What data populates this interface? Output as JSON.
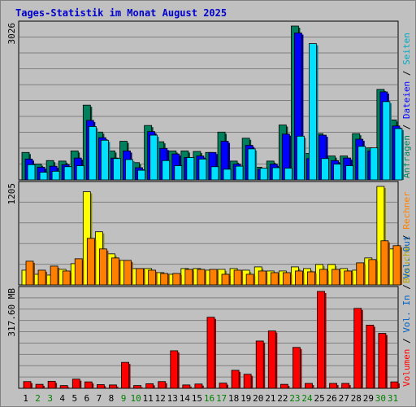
{
  "chart_data": [
    {
      "type": "bar",
      "title": "Tages-Statistik im Monat August 2025",
      "ymax_label": "3026",
      "ylim": [
        0,
        3026
      ],
      "categories": [
        "1",
        "2",
        "3",
        "4",
        "5",
        "6",
        "7",
        "8",
        "9",
        "10",
        "11",
        "12",
        "13",
        "14",
        "15",
        "16",
        "17",
        "18",
        "19",
        "20",
        "21",
        "22",
        "23",
        "24",
        "25",
        "26",
        "27",
        "28",
        "29",
        "30",
        "31"
      ],
      "weekend_days": [
        "2",
        "3",
        "9",
        "10",
        "16",
        "17",
        "23",
        "24",
        "30",
        "31"
      ],
      "legend": [
        "Anfragen",
        "Dateien",
        "Seiten"
      ],
      "legend_separator": " / ",
      "series": [
        {
          "name": "Anfragen",
          "color": "#00805c",
          "values": [
            540,
            310,
            380,
            370,
            570,
            1470,
            940,
            570,
            760,
            340,
            1070,
            750,
            570,
            570,
            560,
            540,
            940,
            370,
            820,
            250,
            370,
            1080,
            3026,
            520,
            910,
            470,
            470,
            910,
            630,
            1780,
            1180
          ]
        },
        {
          "name": "Dateien",
          "color": "#0000ff",
          "values": [
            410,
            250,
            270,
            300,
            430,
            1170,
            830,
            430,
            570,
            240,
            950,
            620,
            510,
            440,
            470,
            540,
            760,
            310,
            680,
            210,
            310,
            900,
            2890,
            420,
            880,
            380,
            430,
            800,
            570,
            1730,
            1060
          ]
        },
        {
          "name": "Seiten",
          "color": "#00e0ff",
          "values": [
            300,
            150,
            170,
            260,
            280,
            1050,
            780,
            420,
            400,
            190,
            880,
            380,
            280,
            440,
            410,
            260,
            210,
            270,
            610,
            230,
            240,
            230,
            860,
            2680,
            420,
            310,
            280,
            660,
            630,
            1540,
            1010
          ]
        }
      ]
    },
    {
      "type": "bar",
      "ymax_label": "1205",
      "ylim": [
        0,
        1205
      ],
      "categories": [
        "1",
        "2",
        "3",
        "4",
        "5",
        "6",
        "7",
        "8",
        "9",
        "10",
        "11",
        "12",
        "13",
        "14",
        "15",
        "16",
        "17",
        "18",
        "19",
        "20",
        "21",
        "22",
        "23",
        "24",
        "25",
        "26",
        "27",
        "28",
        "29",
        "30",
        "31"
      ],
      "legend": [
        "Besuche",
        "Rechner"
      ],
      "legend_separator": " / ",
      "series": [
        {
          "name": "Besuche",
          "color": "#ffff00",
          "values": [
            180,
            130,
            120,
            190,
            260,
            1140,
            650,
            380,
            300,
            200,
            200,
            150,
            130,
            200,
            200,
            180,
            190,
            200,
            180,
            220,
            170,
            170,
            220,
            200,
            250,
            250,
            200,
            180,
            330,
            1205,
            440
          ]
        },
        {
          "name": "Rechner",
          "color": "#ff8000",
          "values": [
            290,
            180,
            230,
            170,
            320,
            570,
            440,
            330,
            300,
            200,
            180,
            140,
            140,
            190,
            190,
            190,
            130,
            180,
            130,
            170,
            150,
            150,
            170,
            160,
            190,
            190,
            170,
            270,
            310,
            540,
            480
          ]
        }
      ]
    },
    {
      "type": "bar",
      "ymax_label": "317.60 MB",
      "ylim": [
        0,
        317.6
      ],
      "categories": [
        "1",
        "2",
        "3",
        "4",
        "5",
        "6",
        "7",
        "8",
        "9",
        "10",
        "11",
        "12",
        "13",
        "14",
        "15",
        "16",
        "17",
        "18",
        "19",
        "20",
        "21",
        "22",
        "23",
        "24",
        "25",
        "26",
        "27",
        "28",
        "29",
        "30",
        "31"
      ],
      "legend": [
        "Volumen",
        "Vol. In",
        "Vol. Out"
      ],
      "legend_separator": " / ",
      "series": [
        {
          "name": "Volumen",
          "color": "#ff0000",
          "values": [
            22,
            13,
            23,
            9,
            30,
            21,
            12,
            11,
            85,
            9,
            15,
            22,
            123,
            11,
            14,
            233,
            17,
            59,
            46,
            155,
            188,
            13,
            134,
            16,
            317.6,
            16,
            16,
            262,
            207,
            180,
            21
          ]
        }
      ]
    }
  ]
}
